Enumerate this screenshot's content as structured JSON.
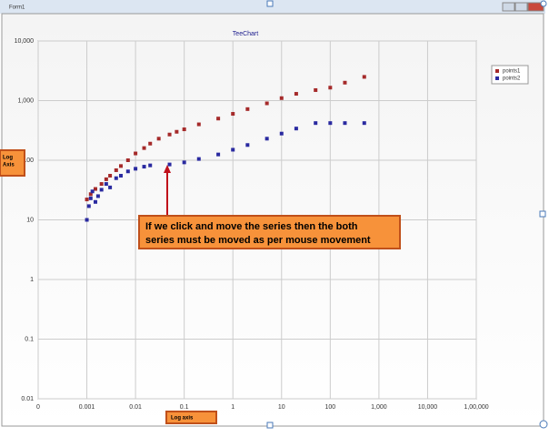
{
  "window": {
    "title": "Form1"
  },
  "chart_data": {
    "type": "scatter",
    "title": "TeeChart",
    "xlog": true,
    "ylog": true,
    "grid": true,
    "legend": "top-right",
    "xlim": [
      0.0001,
      100000
    ],
    "ylim": [
      0.01,
      10000
    ],
    "xticks": [
      {
        "value": 0.0001,
        "label": "0"
      },
      0.001,
      0.01,
      0.1,
      1,
      10,
      100,
      {
        "value": 1000,
        "label": "1,000"
      },
      {
        "value": 10000,
        "label": "10,000"
      },
      {
        "value": 100000,
        "label": "1,00,000"
      }
    ],
    "yticks": [
      0.01,
      0.1,
      1,
      10,
      100,
      {
        "value": 1000,
        "label": "1,000"
      },
      {
        "value": 10000,
        "label": "10,000"
      }
    ],
    "series": [
      {
        "name": "points1",
        "color": "#a52a2a",
        "x": [
          0.001,
          0.0012,
          0.0015,
          0.002,
          0.0025,
          0.003,
          0.004,
          0.005,
          0.007,
          0.01,
          0.015,
          0.02,
          0.03,
          0.05,
          0.07,
          0.1,
          0.2,
          0.5,
          1,
          2,
          5,
          10,
          20,
          50,
          100,
          200,
          500
        ],
        "values": [
          22,
          27,
          33,
          40,
          48,
          55,
          68,
          80,
          100,
          130,
          160,
          190,
          230,
          270,
          300,
          330,
          400,
          500,
          600,
          720,
          900,
          1100,
          1300,
          1500,
          1650,
          2000,
          2500
        ]
      },
      {
        "name": "points2",
        "color": "#2a2aa0",
        "x": [
          0.001,
          0.0011,
          0.0012,
          0.0013,
          0.0015,
          0.0017,
          0.002,
          0.0025,
          0.003,
          0.004,
          0.005,
          0.007,
          0.01,
          0.015,
          0.02,
          0.05,
          0.1,
          0.2,
          0.5,
          1,
          2,
          5,
          10,
          20,
          50,
          100,
          200,
          500
        ],
        "values": [
          10,
          17,
          23,
          30,
          20,
          25,
          32,
          40,
          35,
          50,
          55,
          65,
          72,
          78,
          82,
          85,
          92,
          105,
          125,
          150,
          180,
          230,
          280,
          340,
          420,
          420,
          420,
          420
        ]
      }
    ]
  },
  "annotations": {
    "y_axis_note": [
      "Log",
      "Axis"
    ],
    "x_axis_note": "Log axis",
    "callout": [
      "If we click and move the series then the both",
      "series must be moved as per mouse movement"
    ]
  }
}
